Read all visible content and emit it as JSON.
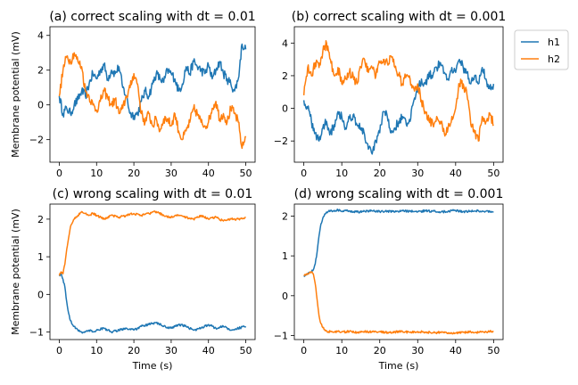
{
  "chart_data": [
    {
      "type": "line",
      "title": "(a) correct scaling with dt = 0.01",
      "xlabel": "",
      "ylabel": "Membrane potential (mV)",
      "xlim": [
        -2.5,
        52.5
      ],
      "ylim": [
        -3.3,
        4.5
      ],
      "xticks": [
        0,
        10,
        20,
        30,
        40,
        50
      ],
      "yticks": [
        -2,
        0,
        2,
        4
      ],
      "grid": false,
      "series": [
        {
          "name": "h1",
          "color": "#1f77b4",
          "x": [
            0,
            1,
            2,
            3,
            4,
            5,
            6,
            7,
            8,
            9,
            10,
            11,
            12,
            13,
            14,
            15,
            16,
            17,
            18,
            19,
            20,
            21,
            22,
            23,
            24,
            25,
            26,
            27,
            28,
            29,
            30,
            31,
            32,
            33,
            34,
            35,
            36,
            37,
            38,
            39,
            40,
            41,
            42,
            43,
            44,
            45,
            46,
            47,
            48,
            49,
            50
          ],
          "y": [
            0.5,
            -0.5,
            -0.2,
            -0.5,
            0.0,
            0.3,
            0.8,
            0.5,
            1.2,
            1.8,
            1.5,
            2.0,
            2.3,
            1.5,
            2.0,
            1.8,
            2.2,
            1.0,
            0.5,
            -0.5,
            -0.6,
            -0.5,
            0.2,
            0.8,
            0.5,
            1.2,
            1.8,
            1.5,
            1.3,
            2.0,
            1.8,
            1.5,
            0.8,
            1.2,
            2.2,
            1.8,
            2.5,
            2.2,
            2.0,
            1.8,
            2.3,
            1.5,
            2.0,
            2.5,
            1.8,
            1.5,
            1.2,
            0.8,
            1.5,
            3.5,
            3.2
          ]
        },
        {
          "name": "h2",
          "color": "#ff7f0e",
          "x": [
            0,
            1,
            2,
            3,
            4,
            5,
            6,
            7,
            8,
            9,
            10,
            11,
            12,
            13,
            14,
            15,
            16,
            17,
            18,
            19,
            20,
            21,
            22,
            23,
            24,
            25,
            26,
            27,
            28,
            29,
            30,
            31,
            32,
            33,
            34,
            35,
            36,
            37,
            38,
            39,
            40,
            41,
            42,
            43,
            44,
            45,
            46,
            47,
            48,
            49,
            50
          ],
          "y": [
            0.5,
            2.0,
            2.8,
            2.5,
            3.0,
            2.5,
            2.2,
            0.8,
            0.5,
            0.0,
            -0.3,
            0.2,
            0.8,
            0.4,
            0.0,
            0.3,
            -0.5,
            -0.2,
            0.5,
            1.0,
            1.8,
            1.2,
            -0.5,
            -1.0,
            -0.5,
            -1.2,
            -0.8,
            -1.5,
            -0.8,
            -0.8,
            -1.2,
            -0.5,
            -1.5,
            -2.0,
            -1.5,
            -1.0,
            -0.2,
            -0.5,
            -1.0,
            -1.2,
            -1.0,
            -0.2,
            0.2,
            -0.8,
            -0.5,
            -1.0,
            -0.2,
            -0.5,
            -1.0,
            -2.5,
            -1.8
          ]
        }
      ]
    },
    {
      "type": "line",
      "title": "(b) correct scaling with dt = 0.001",
      "xlabel": "",
      "ylabel": "",
      "xlim": [
        -2.5,
        52.5
      ],
      "ylim": [
        -3.3,
        5.0
      ],
      "xticks": [
        0,
        10,
        20,
        30,
        40,
        50
      ],
      "yticks": [
        -2,
        0,
        2,
        4
      ],
      "grid": false,
      "series": [
        {
          "name": "h1",
          "color": "#1f77b4",
          "x": [
            0,
            1,
            2,
            3,
            4,
            5,
            6,
            7,
            8,
            9,
            10,
            11,
            12,
            13,
            14,
            15,
            16,
            17,
            18,
            19,
            20,
            21,
            22,
            23,
            24,
            25,
            26,
            27,
            28,
            29,
            30,
            31,
            32,
            33,
            34,
            35,
            36,
            37,
            38,
            39,
            40,
            41,
            42,
            43,
            44,
            45,
            46,
            47,
            48,
            49,
            50
          ],
          "y": [
            0.5,
            0.0,
            -0.8,
            -1.5,
            -2.0,
            -1.2,
            -0.8,
            -1.5,
            -1.0,
            -0.2,
            -0.5,
            -1.2,
            -0.6,
            -0.4,
            -1.0,
            -1.2,
            -1.6,
            -2.5,
            -2.8,
            -2.0,
            -1.5,
            -0.2,
            -0.5,
            -1.5,
            -1.2,
            -0.8,
            -0.5,
            -1.0,
            -0.8,
            0.5,
            1.0,
            1.8,
            1.5,
            2.2,
            2.0,
            2.5,
            2.8,
            2.2,
            1.8,
            2.5,
            2.2,
            3.0,
            2.5,
            2.2,
            1.5,
            2.0,
            1.5,
            2.5,
            1.8,
            1.2,
            1.5
          ]
        },
        {
          "name": "h2",
          "color": "#ff7f0e",
          "x": [
            0,
            1,
            2,
            3,
            4,
            5,
            6,
            7,
            8,
            9,
            10,
            11,
            12,
            13,
            14,
            15,
            16,
            17,
            18,
            19,
            20,
            21,
            22,
            23,
            24,
            25,
            26,
            27,
            28,
            29,
            30,
            31,
            32,
            33,
            34,
            35,
            36,
            37,
            38,
            39,
            40,
            41,
            42,
            43,
            44,
            45,
            46,
            47,
            48,
            49,
            50
          ],
          "y": [
            0.8,
            2.5,
            2.0,
            2.8,
            2.5,
            3.5,
            4.0,
            3.0,
            2.0,
            2.5,
            1.5,
            1.8,
            2.2,
            2.0,
            1.5,
            2.5,
            3.0,
            2.2,
            2.5,
            2.0,
            2.8,
            3.0,
            2.8,
            3.2,
            2.5,
            2.0,
            1.5,
            2.0,
            1.8,
            1.2,
            1.5,
            0.5,
            -0.2,
            -0.8,
            -1.0,
            -0.5,
            -0.8,
            -1.5,
            -1.2,
            -0.5,
            0.0,
            1.5,
            1.5,
            0.8,
            -1.0,
            -1.5,
            -2.0,
            -0.5,
            -0.8,
            -0.3,
            -1.0
          ]
        }
      ]
    },
    {
      "type": "line",
      "title": "(c) wrong scaling with dt = 0.01",
      "xlabel": "Time (s)",
      "ylabel": "Membrane potential (mV)",
      "xlim": [
        -2.5,
        52.5
      ],
      "ylim": [
        -1.2,
        2.4
      ],
      "xticks": [
        0,
        10,
        20,
        30,
        40,
        50
      ],
      "yticks": [
        -1,
        0,
        1,
        2
      ],
      "grid": false,
      "series": [
        {
          "name": "h1",
          "color": "#1f77b4",
          "x": [
            0,
            0.5,
            1,
            1.5,
            2,
            2.5,
            3,
            3.5,
            4,
            5,
            6,
            7,
            8,
            9,
            10,
            12,
            14,
            16,
            18,
            20,
            22,
            24,
            26,
            28,
            30,
            32,
            34,
            36,
            38,
            40,
            42,
            44,
            46,
            48,
            50
          ],
          "y": [
            0.5,
            0.55,
            0.4,
            0.2,
            -0.2,
            -0.5,
            -0.7,
            -0.8,
            -0.85,
            -0.95,
            -1.0,
            -1.0,
            -0.95,
            -1.0,
            -0.95,
            -0.9,
            -1.0,
            -0.95,
            -0.9,
            -0.95,
            -0.85,
            -0.8,
            -0.75,
            -0.85,
            -0.9,
            -0.8,
            -0.85,
            -0.95,
            -0.9,
            -0.8,
            -0.9,
            -0.85,
            -0.95,
            -0.9,
            -0.85
          ]
        },
        {
          "name": "h2",
          "color": "#ff7f0e",
          "x": [
            0,
            0.5,
            1,
            1.5,
            2,
            2.5,
            3,
            3.5,
            4,
            5,
            6,
            7,
            8,
            9,
            10,
            12,
            14,
            16,
            18,
            20,
            22,
            24,
            26,
            28,
            30,
            32,
            34,
            36,
            38,
            40,
            42,
            44,
            46,
            48,
            50
          ],
          "y": [
            0.5,
            0.6,
            0.55,
            0.8,
            1.2,
            1.5,
            1.8,
            1.9,
            2.0,
            2.1,
            2.2,
            2.15,
            2.1,
            2.15,
            2.1,
            2.0,
            2.1,
            2.05,
            2.1,
            2.15,
            2.1,
            2.15,
            2.2,
            2.1,
            2.05,
            2.1,
            2.05,
            2.0,
            2.1,
            2.0,
            2.05,
            1.95,
            2.0,
            2.0,
            2.05
          ]
        }
      ]
    },
    {
      "type": "line",
      "title": "(d) wrong scaling with dt = 0.001",
      "xlabel": "Time (s)",
      "ylabel": "",
      "xlim": [
        -2.5,
        52.5
      ],
      "ylim": [
        -1.1,
        2.3
      ],
      "xticks": [
        0,
        10,
        20,
        30,
        40,
        50
      ],
      "yticks": [
        -1,
        0,
        1,
        2
      ],
      "grid": false,
      "series": [
        {
          "name": "h1",
          "color": "#1f77b4",
          "x": [
            0,
            0.5,
            1,
            1.5,
            2,
            2.5,
            3,
            3.5,
            4,
            4.5,
            5,
            5.5,
            6,
            6.5,
            7,
            8,
            9,
            10,
            12,
            14,
            16,
            18,
            20,
            22,
            24,
            26,
            28,
            30,
            32,
            34,
            36,
            38,
            40,
            42,
            44,
            46,
            48,
            50
          ],
          "y": [
            0.5,
            0.52,
            0.55,
            0.58,
            0.6,
            0.65,
            0.8,
            1.1,
            1.5,
            1.8,
            1.95,
            2.05,
            2.1,
            2.12,
            2.13,
            2.14,
            2.15,
            2.12,
            2.13,
            2.1,
            2.12,
            2.13,
            2.11,
            2.12,
            2.1,
            2.13,
            2.12,
            2.11,
            2.13,
            2.12,
            2.1,
            2.12,
            2.14,
            2.11,
            2.12,
            2.13,
            2.12,
            2.11
          ]
        },
        {
          "name": "h2",
          "color": "#ff7f0e",
          "x": [
            0,
            0.5,
            1,
            1.5,
            2,
            2.5,
            3,
            3.5,
            4,
            4.5,
            5,
            5.5,
            6,
            6.5,
            7,
            8,
            9,
            10,
            12,
            14,
            16,
            18,
            20,
            22,
            24,
            26,
            28,
            30,
            32,
            34,
            36,
            38,
            40,
            42,
            44,
            46,
            48,
            50
          ],
          "y": [
            0.5,
            0.52,
            0.55,
            0.58,
            0.6,
            0.55,
            0.3,
            -0.1,
            -0.5,
            -0.7,
            -0.8,
            -0.85,
            -0.88,
            -0.9,
            -0.9,
            -0.92,
            -0.9,
            -0.91,
            -0.9,
            -0.92,
            -0.9,
            -0.91,
            -0.9,
            -0.92,
            -0.91,
            -0.9,
            -0.92,
            -0.9,
            -0.91,
            -0.93,
            -0.92,
            -0.93,
            -0.94,
            -0.92,
            -0.91,
            -0.92,
            -0.9,
            -0.89
          ]
        }
      ]
    }
  ],
  "legend": {
    "placement": "upper-right",
    "entries": [
      {
        "name": "h1",
        "color": "#1f77b4"
      },
      {
        "name": "h2",
        "color": "#ff7f0e"
      }
    ]
  }
}
